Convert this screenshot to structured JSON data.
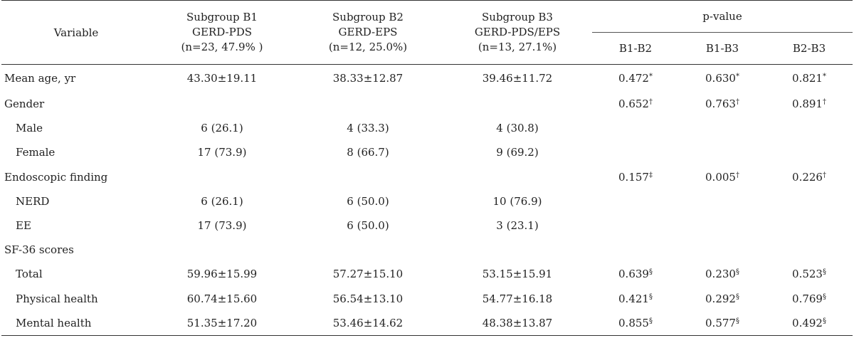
{
  "header": {
    "variable": "Variable",
    "b1": [
      "Subgroup B1",
      "GERD-PDS",
      "(n=23, 47.9% )"
    ],
    "b2": [
      "Subgroup B2",
      "GERD-EPS",
      "(n=12, 25.0%)"
    ],
    "b3": [
      "Subgroup B3",
      "GERD-PDS/EPS",
      "(n=13, 27.1%)"
    ],
    "pvalue": "p-value",
    "p_cols": [
      "B1-B2",
      "B1-B3",
      "B2-B3"
    ]
  },
  "rows": [
    {
      "label": "Mean age, yr",
      "b1": "43.30±19.11",
      "b2": "38.33±12.87",
      "b3": "39.46±11.72",
      "p12": "0.472",
      "p12s": "*",
      "p13": "0.630",
      "p13s": "*",
      "p23": "0.821",
      "p23s": "*"
    },
    {
      "label": "Gender",
      "b1": "",
      "b2": "",
      "b3": "",
      "p12": "0.652",
      "p12s": "†",
      "p13": "0.763",
      "p13s": "†",
      "p23": "0.891",
      "p23s": "†"
    },
    {
      "label": "Male",
      "b1": "6 (26.1)",
      "b2": "4 (33.3)",
      "b3": "4 (30.8)",
      "p12": "",
      "p12s": "",
      "p13": "",
      "p13s": "",
      "p23": "",
      "p23s": ""
    },
    {
      "label": "Female",
      "b1": "17 (73.9)",
      "b2": "8 (66.7)",
      "b3": "9 (69.2)",
      "p12": "",
      "p12s": "",
      "p13": "",
      "p13s": "",
      "p23": "",
      "p23s": ""
    },
    {
      "label": "Endoscopic finding",
      "b1": "",
      "b2": "",
      "b3": "",
      "p12": "0.157",
      "p12s": "‡",
      "p13": "0.005",
      "p13s": "†",
      "p23": "0.226",
      "p23s": "†"
    },
    {
      "label": "NERD",
      "b1": "6 (26.1)",
      "b2": "6 (50.0)",
      "b3": "10 (76.9)",
      "p12": "",
      "p12s": "",
      "p13": "",
      "p13s": "",
      "p23": "",
      "p23s": ""
    },
    {
      "label": "EE",
      "b1": "17 (73.9)",
      "b2": "6 (50.0)",
      "b3": "3 (23.1)",
      "p12": "",
      "p12s": "",
      "p13": "",
      "p13s": "",
      "p23": "",
      "p23s": ""
    },
    {
      "label": "SF-36 scores",
      "b1": "",
      "b2": "",
      "b3": "",
      "p12": "",
      "p12s": "",
      "p13": "",
      "p13s": "",
      "p23": "",
      "p23s": ""
    },
    {
      "label": "Total",
      "b1": "59.96±15.99",
      "b2": "57.27±15.10",
      "b3": "53.15±15.91",
      "p12": "0.639",
      "p12s": "§",
      "p13": "0.230",
      "p13s": "§",
      "p23": "0.523",
      "p23s": "§"
    },
    {
      "label": "Physical health",
      "b1": "60.74±15.60",
      "b2": "56.54±13.10",
      "b3": "54.77±16.18",
      "p12": "0.421",
      "p12s": "§",
      "p13": "0.292",
      "p13s": "§",
      "p23": "0.769",
      "p23s": "§"
    },
    {
      "label": "Mental health",
      "b1": "51.35±17.20",
      "b2": "53.46±14.62",
      "b3": "48.38±13.87",
      "p12": "0.855",
      "p12s": "§",
      "p13": "0.577",
      "p13s": "§",
      "p23": "0.492",
      "p23s": "§"
    }
  ]
}
